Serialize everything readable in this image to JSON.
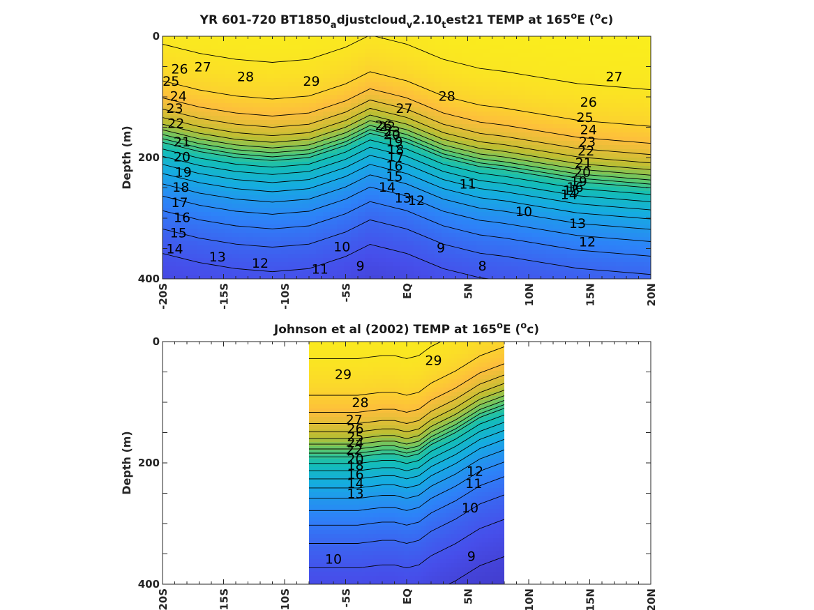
{
  "chart_data": [
    {
      "type": "heatmap",
      "title_parts": [
        "YR 601-720 BT1850",
        "a",
        "djustcloud",
        "v",
        "2.10",
        "t",
        "est21 TEMP at 165",
        "o",
        "E (",
        "o",
        "c)"
      ],
      "ylabel": "Depth (m)",
      "x_ticks": [
        "-20S",
        "-15S",
        "-10S",
        "-5S",
        "EQ",
        "5N",
        "10N",
        "15N",
        "20N"
      ],
      "x_tick_values": [
        -20,
        -15,
        -10,
        -5,
        0,
        5,
        10,
        15,
        20
      ],
      "y_ticks": [
        "0",
        "200",
        "400"
      ],
      "y_tick_values": [
        0,
        200,
        400
      ],
      "xlim": [
        -20,
        20
      ],
      "ylim": [
        0,
        400
      ],
      "y_reversed": true,
      "data_xlim": [
        -20,
        20
      ],
      "colormap": "parula",
      "color_range": [
        8,
        30
      ],
      "contour_interval": 1,
      "thermocline_depth_profile": {
        "lat": [
          -20,
          -17,
          -14,
          -11,
          -8,
          -5,
          -3,
          0,
          3,
          6,
          8,
          11,
          14,
          17,
          20
        ],
        "depth_of_20C": [
          175,
          190,
          200,
          205,
          200,
          180,
          160,
          175,
          200,
          215,
          220,
          230,
          240,
          245,
          250
        ]
      },
      "contour_labels": [
        {
          "text": "26",
          "lat": -18.6,
          "depth": 55
        },
        {
          "text": "27",
          "lat": -16.7,
          "depth": 52
        },
        {
          "text": "28",
          "lat": -13.2,
          "depth": 68
        },
        {
          "text": "29",
          "lat": -7.8,
          "depth": 75
        },
        {
          "text": "25",
          "lat": -19.3,
          "depth": 75
        },
        {
          "text": "24",
          "lat": -18.7,
          "depth": 100
        },
        {
          "text": "23",
          "lat": -19.0,
          "depth": 120
        },
        {
          "text": "22",
          "lat": -18.9,
          "depth": 145
        },
        {
          "text": "21",
          "lat": -18.4,
          "depth": 175
        },
        {
          "text": "20",
          "lat": -18.4,
          "depth": 200
        },
        {
          "text": "19",
          "lat": -18.3,
          "depth": 225
        },
        {
          "text": "18",
          "lat": -18.5,
          "depth": 250
        },
        {
          "text": "17",
          "lat": -18.6,
          "depth": 275
        },
        {
          "text": "16",
          "lat": -18.4,
          "depth": 300
        },
        {
          "text": "15",
          "lat": -18.7,
          "depth": 325
        },
        {
          "text": "14",
          "lat": -19.0,
          "depth": 352
        },
        {
          "text": "13",
          "lat": -15.5,
          "depth": 365
        },
        {
          "text": "12",
          "lat": -12.0,
          "depth": 375
        },
        {
          "text": "11",
          "lat": -7.1,
          "depth": 385
        },
        {
          "text": "10",
          "lat": -5.3,
          "depth": 348
        },
        {
          "text": "9",
          "lat": -3.8,
          "depth": 380
        },
        {
          "text": "8",
          "lat": 6.2,
          "depth": 380
        },
        {
          "text": "9",
          "lat": 2.8,
          "depth": 350
        },
        {
          "text": "10",
          "lat": 9.6,
          "depth": 290
        },
        {
          "text": "11",
          "lat": 5.0,
          "depth": 245
        },
        {
          "text": "12",
          "lat": 0.8,
          "depth": 272
        },
        {
          "text": "13",
          "lat": -0.3,
          "depth": 268
        },
        {
          "text": "14",
          "lat": -1.6,
          "depth": 250
        },
        {
          "text": "15",
          "lat": -1.0,
          "depth": 232
        },
        {
          "text": "16",
          "lat": -1.0,
          "depth": 215
        },
        {
          "text": "17",
          "lat": -0.9,
          "depth": 200
        },
        {
          "text": "18",
          "lat": -0.9,
          "depth": 188
        },
        {
          "text": "19",
          "lat": -1.0,
          "depth": 175
        },
        {
          "text": "20",
          "lat": -1.2,
          "depth": 163
        },
        {
          "text": "22",
          "lat": -1.6,
          "depth": 150
        },
        {
          "text": "23",
          "lat": -1.2,
          "depth": 158
        },
        {
          "text": "26",
          "lat": -1.9,
          "depth": 148
        },
        {
          "text": "27",
          "lat": -0.2,
          "depth": 120
        },
        {
          "text": "28",
          "lat": 3.3,
          "depth": 100
        },
        {
          "text": "27",
          "lat": 17.0,
          "depth": 68
        },
        {
          "text": "26",
          "lat": 14.9,
          "depth": 110
        },
        {
          "text": "25",
          "lat": 14.6,
          "depth": 135
        },
        {
          "text": "24",
          "lat": 14.9,
          "depth": 155
        },
        {
          "text": "23",
          "lat": 14.8,
          "depth": 175
        },
        {
          "text": "22",
          "lat": 14.7,
          "depth": 190
        },
        {
          "text": "21",
          "lat": 14.5,
          "depth": 210
        },
        {
          "text": "20",
          "lat": 14.4,
          "depth": 225
        },
        {
          "text": "19",
          "lat": 14.1,
          "depth": 240
        },
        {
          "text": "14",
          "lat": 13.3,
          "depth": 262
        },
        {
          "text": "15",
          "lat": 13.5,
          "depth": 255
        },
        {
          "text": "16",
          "lat": 13.8,
          "depth": 250
        },
        {
          "text": "13",
          "lat": 14.0,
          "depth": 310
        },
        {
          "text": "12",
          "lat": 14.8,
          "depth": 340
        }
      ]
    },
    {
      "type": "heatmap",
      "title_parts": [
        "Johnson et al (2002) TEMP at 165",
        "o",
        "E (",
        "o",
        "c)"
      ],
      "ylabel": "Depth (m)",
      "x_ticks": [
        "-20S",
        "-15S",
        "-10S",
        "-5S",
        "EQ",
        "5N",
        "10N",
        "15N",
        "20N"
      ],
      "x_tick_values": [
        -20,
        -15,
        -10,
        -5,
        0,
        5,
        10,
        15,
        20
      ],
      "y_ticks": [
        "0",
        "200",
        "400"
      ],
      "y_tick_values": [
        0,
        200,
        400
      ],
      "xlim": [
        -20,
        20
      ],
      "ylim": [
        0,
        400
      ],
      "y_reversed": true,
      "data_xlim": [
        -8,
        8
      ],
      "colormap": "parula",
      "color_range": [
        8,
        30
      ],
      "contour_interval": 1,
      "thermocline_depth_profile": {
        "lat": [
          -8,
          -6,
          -4,
          -2,
          -1,
          0,
          1,
          2,
          4,
          6,
          8
        ],
        "depth_of_20C": [
          190,
          190,
          190,
          185,
          185,
          190,
          185,
          170,
          150,
          125,
          110
        ]
      },
      "contour_labels": [
        {
          "text": "29",
          "lat": -5.2,
          "depth": 55
        },
        {
          "text": "29",
          "lat": 2.2,
          "depth": 32
        },
        {
          "text": "28",
          "lat": -3.8,
          "depth": 102
        },
        {
          "text": "27",
          "lat": -4.3,
          "depth": 130
        },
        {
          "text": "26",
          "lat": -4.2,
          "depth": 145
        },
        {
          "text": "25",
          "lat": -4.2,
          "depth": 158
        },
        {
          "text": "24",
          "lat": -4.2,
          "depth": 168
        },
        {
          "text": "22",
          "lat": -4.3,
          "depth": 180
        },
        {
          "text": "20",
          "lat": -4.2,
          "depth": 195
        },
        {
          "text": "18",
          "lat": -4.2,
          "depth": 205
        },
        {
          "text": "16",
          "lat": -4.2,
          "depth": 220
        },
        {
          "text": "14",
          "lat": -4.2,
          "depth": 235
        },
        {
          "text": "13",
          "lat": -4.2,
          "depth": 252
        },
        {
          "text": "12",
          "lat": 5.6,
          "depth": 215
        },
        {
          "text": "11",
          "lat": 5.5,
          "depth": 235
        },
        {
          "text": "10",
          "lat": 5.2,
          "depth": 275
        },
        {
          "text": "10",
          "lat": -6.0,
          "depth": 360
        },
        {
          "text": "9",
          "lat": 5.3,
          "depth": 355
        }
      ]
    }
  ]
}
